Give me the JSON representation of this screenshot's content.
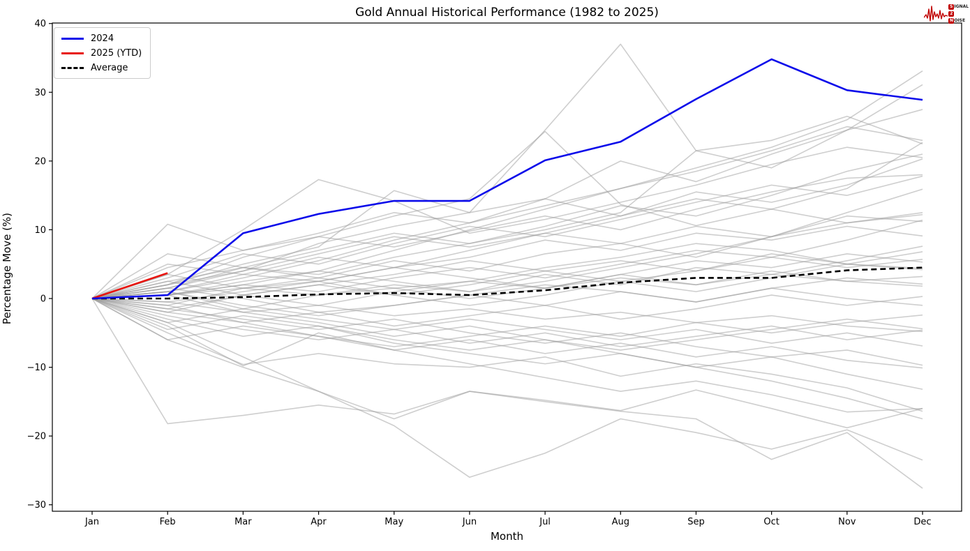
{
  "figure": {
    "title": "Gold Annual Historical Performance (1982 to 2025)"
  },
  "logo": {
    "name": "Signal 2 Noise",
    "accent_color": "#c00000",
    "row1_initial": "S",
    "row1_rest": "IGNAL",
    "row2_initial": "2",
    "row2_rest": "",
    "row3_initial": "N",
    "row3_rest": "OISE"
  },
  "chart_data": {
    "type": "line",
    "title": "Gold Annual Historical Performance (1982 to 2025)",
    "xlabel": "Month",
    "ylabel": "Percentage Move (%)",
    "categories": [
      "Jan",
      "Feb",
      "Mar",
      "Apr",
      "May",
      "Jun",
      "Jul",
      "Aug",
      "Sep",
      "Oct",
      "Nov",
      "Dec"
    ],
    "ylim": [
      -31,
      40.5
    ],
    "yticks": [
      40,
      30,
      20,
      10,
      0,
      -10,
      -20,
      -30
    ],
    "grid": false,
    "legend": {
      "position": "upper-left",
      "entries": [
        {
          "label": "2024",
          "color": "#0b0bea",
          "dash": "solid"
        },
        {
          "label": "2025 (YTD)",
          "color": "#e8150f",
          "dash": "solid"
        },
        {
          "label": "Average",
          "color": "#000000",
          "dash": "dashed"
        }
      ]
    },
    "highlight_series": [
      {
        "name": "2024",
        "color": "#0b0bea",
        "dash": "solid",
        "width": 2.6,
        "values": [
          0,
          0.5,
          9.5,
          12.3,
          14.2,
          14.2,
          20.1,
          22.8,
          29.0,
          34.8,
          30.3,
          28.9
        ]
      },
      {
        "name": "2025 (YTD)",
        "color": "#e8150f",
        "dash": "solid",
        "width": 2.6,
        "values": [
          0,
          3.7
        ]
      },
      {
        "name": "Average",
        "color": "#000000",
        "dash": "dashed",
        "width": 2.6,
        "values": [
          0,
          0.0,
          0.2,
          0.6,
          0.8,
          0.5,
          1.2,
          2.3,
          3.0,
          3.0,
          4.1,
          4.5
        ]
      }
    ],
    "context_series": {
      "description": "Unlabeled gray lines: one per year 1982-2023, cumulative % move by month (values estimated from plot)",
      "color": "#9e9e9e",
      "opacity": 0.5,
      "width": 1.6,
      "values": [
        [
          0,
          1.5,
          4,
          8,
          10.5,
          12.5,
          24.5,
          37,
          21.5,
          23,
          26.5,
          22.5
        ],
        [
          0,
          10.8,
          7,
          9,
          7.5,
          9.8,
          12,
          10,
          13,
          15.5,
          17.5,
          18
        ],
        [
          0,
          3.5,
          10,
          17.3,
          14.2,
          9.5,
          11.5,
          14,
          16.5,
          19.5,
          22,
          20.5
        ],
        [
          0,
          -3.5,
          -8.5,
          -13.5,
          -18.5,
          -26,
          -22.5,
          -17.5,
          -19.5,
          -21.9,
          -19.1,
          -23.5
        ],
        [
          0,
          -18.2,
          -17,
          -15.5,
          -16.8,
          -13.5,
          -14.8,
          -16.3,
          -13.3,
          -16,
          -18.8,
          -16
        ],
        [
          0,
          -6,
          -10,
          -13.5,
          -17.5,
          -13.5,
          -15,
          -16.4,
          -17.5,
          -23.4,
          -19.5,
          -27.6
        ],
        [
          0,
          0.5,
          2,
          4,
          7,
          10,
          13,
          16,
          19,
          22,
          26,
          33.1
        ],
        [
          0,
          1,
          3,
          5.5,
          8.5,
          11,
          14.5,
          20,
          17,
          21,
          24.5,
          31.1
        ],
        [
          0,
          2,
          6,
          9,
          12,
          14.5,
          24.3,
          13.7,
          10.6,
          13,
          11,
          12.5
        ],
        [
          0,
          2.5,
          4.5,
          3,
          5.5,
          4,
          6.5,
          8,
          6,
          9,
          11,
          12.2
        ],
        [
          0,
          1,
          -1.5,
          0.5,
          2,
          1,
          3.5,
          2,
          4.5,
          3.5,
          5.5,
          7.6
        ],
        [
          0,
          -1,
          1.5,
          2.5,
          0.5,
          2,
          4,
          5.5,
          4,
          6.5,
          5,
          4.4
        ],
        [
          0,
          0.5,
          2,
          1,
          3,
          4.5,
          3,
          5,
          7,
          6,
          8.5,
          11.4
        ],
        [
          0,
          -2,
          -3.5,
          -2,
          -4,
          -2.5,
          -1,
          -3,
          -1.5,
          0.5,
          -1,
          0.3
        ],
        [
          0,
          1.5,
          0,
          -2,
          -1,
          0.5,
          2,
          1,
          -0.5,
          1.5,
          3,
          2.1
        ],
        [
          0,
          -2.5,
          -4.5,
          -6,
          -4.5,
          -6.5,
          -5,
          -7,
          -5.5,
          -4,
          -6,
          -4.6
        ],
        [
          0,
          -4,
          -9.8,
          -5,
          -7.5,
          -6,
          -8,
          -6.5,
          -8.5,
          -7,
          -9,
          -10.1
        ],
        [
          0,
          3,
          6.5,
          5,
          8,
          10.5,
          9,
          11.5,
          14,
          16.5,
          15,
          17.8
        ],
        [
          0,
          -1.5,
          -3,
          -4.5,
          -3,
          -5,
          -6.5,
          -5,
          -7,
          -8.5,
          -7.5,
          -9.7
        ],
        [
          0,
          5,
          3.5,
          6,
          4.5,
          7,
          9.5,
          8,
          10.5,
          9,
          12,
          11.2
        ],
        [
          0,
          -5,
          -9.6,
          -8,
          -9.5,
          -10,
          -8.5,
          -11.3,
          -9.5,
          -11,
          -13,
          -16.4
        ],
        [
          0,
          2,
          5,
          7.5,
          15.7,
          12.5,
          14.5,
          12,
          15.5,
          14,
          16.5,
          20.3
        ],
        [
          0,
          0.5,
          -2,
          -3.5,
          -5.5,
          -4,
          -6,
          -7.5,
          -6,
          -4.5,
          -3,
          -4.4
        ],
        [
          0,
          -3,
          -5.5,
          -4,
          -6.5,
          -8,
          -9.5,
          -8,
          -10,
          -12,
          -14.5,
          -17.5
        ],
        [
          0,
          1,
          3.5,
          2.5,
          4.5,
          6,
          8.5,
          7,
          9.5,
          8.5,
          10.5,
          9.1
        ],
        [
          0,
          -0.5,
          1,
          2.5,
          4.5,
          3,
          1.5,
          3.5,
          5.5,
          4.5,
          6.5,
          5.3
        ],
        [
          0,
          2,
          4,
          6.5,
          9,
          7.5,
          9.5,
          12,
          14.5,
          13,
          16,
          22.7
        ],
        [
          0,
          1.5,
          4.5,
          3.5,
          6,
          8,
          10.5,
          13.5,
          12,
          15,
          18.5,
          21
        ],
        [
          0,
          -1,
          -3.5,
          -5.5,
          -7.5,
          -9.5,
          -11.5,
          -13.5,
          -12,
          -14,
          -16.5,
          -16
        ],
        [
          0,
          0.5,
          2.5,
          4,
          2.5,
          1,
          2.5,
          4.5,
          6.5,
          9,
          12.5,
          15.9
        ],
        [
          0,
          -2,
          0.5,
          -1,
          1,
          2.5,
          4.5,
          6,
          8,
          7,
          5,
          6.8
        ],
        [
          0,
          6.5,
          4.5,
          7,
          9.5,
          8,
          10,
          12.5,
          21.5,
          19,
          24.5,
          27.5
        ],
        [
          0,
          3.5,
          1.5,
          3,
          1.5,
          0,
          1.5,
          3.5,
          2,
          4,
          2.5,
          1.8
        ],
        [
          0,
          -3.5,
          -1.5,
          -3,
          -4.5,
          -3,
          -4.5,
          -6,
          -4.5,
          -6.5,
          -5,
          -6.9
        ],
        [
          0,
          4.5,
          7,
          9.5,
          12.5,
          11,
          13.5,
          16,
          18.5,
          21.5,
          25,
          23
        ],
        [
          0,
          -6,
          -4,
          -5.5,
          -7,
          -5.5,
          -4,
          -5.5,
          -3.5,
          -5,
          -3.5,
          -2.4
        ],
        [
          0,
          2.5,
          0.5,
          2,
          3.5,
          5.5,
          4,
          2.5,
          4,
          6,
          4.5,
          5.7
        ],
        [
          0,
          -1.5,
          0.5,
          2,
          0.5,
          -1,
          0.5,
          2.5,
          1,
          3,
          5,
          4.2
        ],
        [
          0,
          1,
          -1,
          -2.5,
          -1,
          0.5,
          -1,
          1,
          -0.5,
          1.5,
          0,
          -1
        ],
        [
          0,
          -4.5,
          -2.5,
          -4,
          -6,
          -7.5,
          -6,
          -8,
          -10,
          -8.5,
          -11,
          -13.2
        ],
        [
          0,
          0.5,
          1.5,
          0.5,
          1.5,
          2.5,
          1.5,
          3,
          2,
          3.5,
          2.5,
          3.2
        ],
        [
          0,
          -0.5,
          -2,
          -1,
          -2.5,
          -1.5,
          -3,
          -2,
          -3.5,
          -2.5,
          -4,
          -4.8
        ]
      ]
    }
  }
}
